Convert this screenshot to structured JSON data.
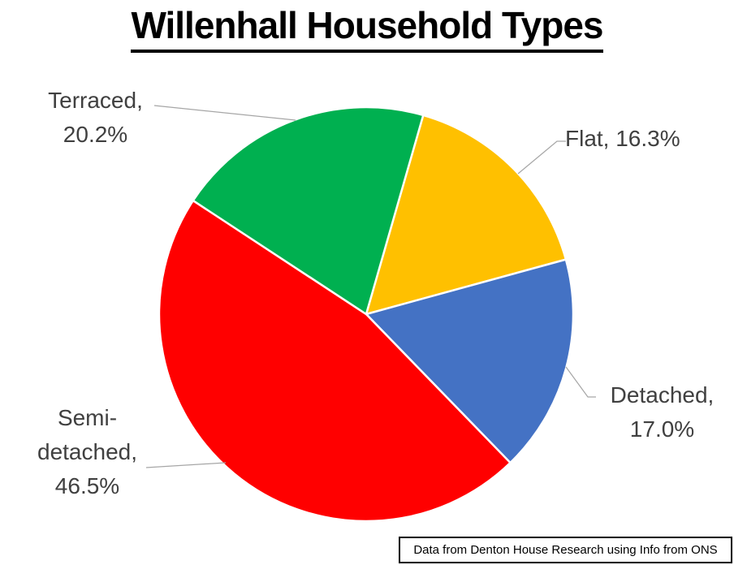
{
  "title": "Willenhall Household Types",
  "footer": "Data from Denton House Research using Info from ONS",
  "chart_data": {
    "type": "pie",
    "title": "Willenhall Household Types",
    "legend": "none",
    "labels_position": "outside-with-leader-lines",
    "start_angle_deg_clockwise_from_12": 16,
    "slices": [
      {
        "label": "Flat",
        "value": 16.3,
        "display": "Flat, 16.3%",
        "color": "#FFC000"
      },
      {
        "label": "Detached",
        "value": 17.0,
        "display": "Detached, 17.0%",
        "color": "#4472C4"
      },
      {
        "label": "Semi-detached",
        "value": 46.5,
        "display": "Semi-detached, 46.5%",
        "color": "#FF0000"
      },
      {
        "label": "Terraced",
        "value": 20.2,
        "display": "Terraced, 20.2%",
        "color": "#00B050"
      }
    ],
    "separator_color": "#FFFFFF",
    "leader_line_color": "#A6A6A6",
    "label_text_color": "#404040"
  },
  "labels": {
    "terraced": {
      "line1": "Terraced,",
      "line2": "20.2%"
    },
    "flat": {
      "line1": "Flat, 16.3%"
    },
    "detached": {
      "line1": "Detached,",
      "line2": "17.0%"
    },
    "semi": {
      "line1": "Semi-",
      "line2": "detached,",
      "line3": "46.5%"
    }
  }
}
